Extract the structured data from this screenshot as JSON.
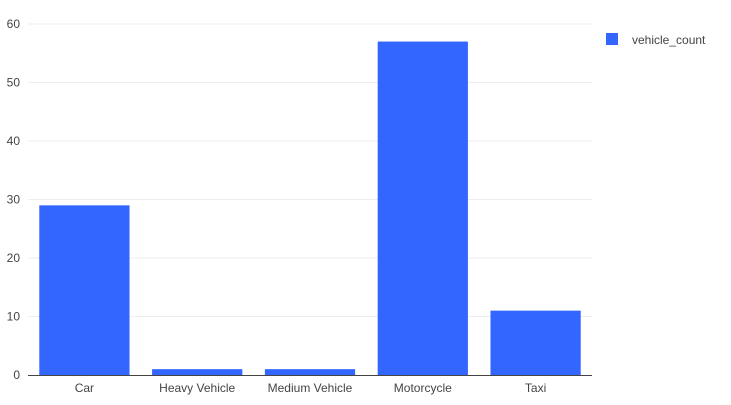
{
  "chart_data": {
    "type": "bar",
    "categories": [
      "Car",
      "Heavy Vehicle",
      "Medium Vehicle",
      "Motorcycle",
      "Taxi"
    ],
    "series": [
      {
        "name": "vehicle_count",
        "values": [
          29,
          1,
          1,
          57,
          11
        ]
      }
    ],
    "title": "",
    "xlabel": "",
    "ylabel": "",
    "ylim": [
      0,
      60
    ],
    "yticks": [
      0,
      10,
      20,
      30,
      40,
      50,
      60
    ],
    "grid": true,
    "legend": "top-right",
    "colors": {
      "bar": "#3366ff",
      "grid": "#eeeeee",
      "axis": "#444444"
    }
  }
}
